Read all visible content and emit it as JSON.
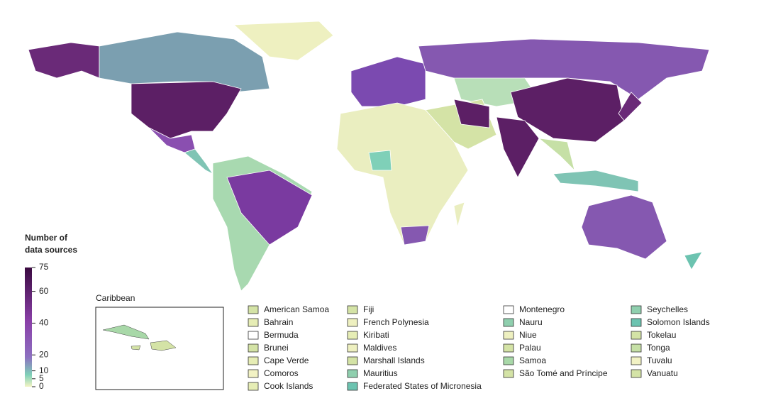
{
  "legend": {
    "title_lines": [
      "Number of",
      "data sources"
    ],
    "range": [
      0,
      75
    ],
    "ticks": [
      0,
      5,
      10,
      20,
      40,
      60,
      75
    ]
  },
  "inset": {
    "title": "Caribbean"
  },
  "small_states": [
    {
      "name": "American Samoa",
      "color": "#d4e3a6"
    },
    {
      "name": "Bahrain",
      "color": "#e6edb5"
    },
    {
      "name": "Bermuda",
      "color": "#ffffff"
    },
    {
      "name": "Brunei",
      "color": "#d4e3a6"
    },
    {
      "name": "Cape Verde",
      "color": "#e6edb5"
    },
    {
      "name": "Comoros",
      "color": "#f2f2c4"
    },
    {
      "name": "Cook Islands",
      "color": "#e6edb5"
    },
    {
      "name": "Fiji",
      "color": "#d4e3a6"
    },
    {
      "name": "French Polynesia",
      "color": "#eef0c0"
    },
    {
      "name": "Kiribati",
      "color": "#e6edb5"
    },
    {
      "name": "Maldives",
      "color": "#eef0c0"
    },
    {
      "name": "Marshall Islands",
      "color": "#d4e3a6"
    },
    {
      "name": "Mauritius",
      "color": "#8fcfae"
    },
    {
      "name": "Federated States of Micronesia",
      "color": "#6cc3b0"
    },
    {
      "name": "Montenegro",
      "color": "#ffffff"
    },
    {
      "name": "Nauru",
      "color": "#8fcfae"
    },
    {
      "name": "Niue",
      "color": "#eef0c0"
    },
    {
      "name": "Palau",
      "color": "#d4e3a6"
    },
    {
      "name": "Samoa",
      "color": "#a8d8a8"
    },
    {
      "name": "São Tomé and Príncipe",
      "color": "#d4e3a6"
    },
    {
      "name": "Seychelles",
      "color": "#8fcfae"
    },
    {
      "name": "Solomon Islands",
      "color": "#6cc3b0"
    },
    {
      "name": "Tokelau",
      "color": "#d4e3a6"
    },
    {
      "name": "Tonga",
      "color": "#c6e0a6"
    },
    {
      "name": "Tuvalu",
      "color": "#f2f2c4"
    },
    {
      "name": "Vanuatu",
      "color": "#d4e3a6"
    }
  ]
}
